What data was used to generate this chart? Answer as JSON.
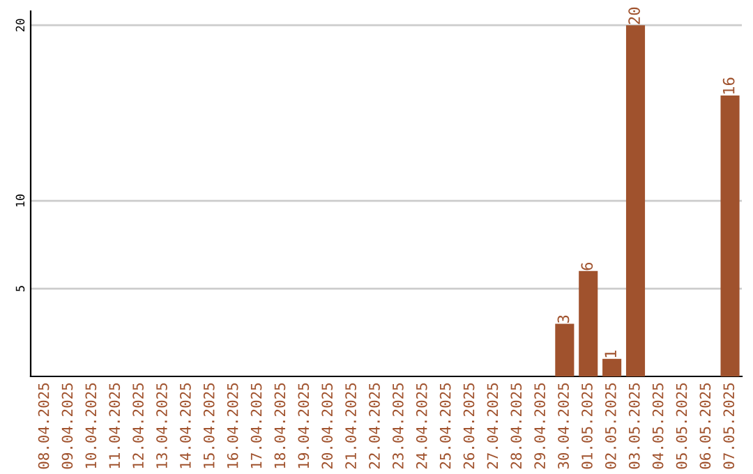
{
  "chart_data": {
    "type": "bar",
    "categories": [
      "08.04.2025",
      "09.04.2025",
      "10.04.2025",
      "11.04.2025",
      "12.04.2025",
      "13.04.2025",
      "14.04.2025",
      "15.04.2025",
      "16.04.2025",
      "17.04.2025",
      "18.04.2025",
      "19.04.2025",
      "20.04.2025",
      "21.04.2025",
      "22.04.2025",
      "23.04.2025",
      "24.04.2025",
      "25.04.2025",
      "26.04.2025",
      "27.04.2025",
      "28.04.2025",
      "29.04.2025",
      "30.04.2025",
      "01.05.2025",
      "02.05.2025",
      "03.05.2025",
      "04.05.2025",
      "05.05.2025",
      "06.05.2025",
      "07.05.2025"
    ],
    "values": [
      0,
      0,
      0,
      0,
      0,
      0,
      0,
      0,
      0,
      0,
      0,
      0,
      0,
      0,
      0,
      0,
      0,
      0,
      0,
      0,
      0,
      0,
      3,
      6,
      1,
      20,
      0,
      0,
      0,
      16
    ],
    "value_labels": [
      null,
      null,
      null,
      null,
      null,
      null,
      null,
      null,
      null,
      null,
      null,
      null,
      null,
      null,
      null,
      null,
      null,
      null,
      null,
      null,
      null,
      null,
      "3",
      "6",
      "1",
      "20",
      null,
      null,
      null,
      "16"
    ],
    "color": "#a0522d",
    "ylim": [
      0,
      20.8
    ],
    "yticks": [
      5,
      10,
      20
    ],
    "grid": "y"
  }
}
